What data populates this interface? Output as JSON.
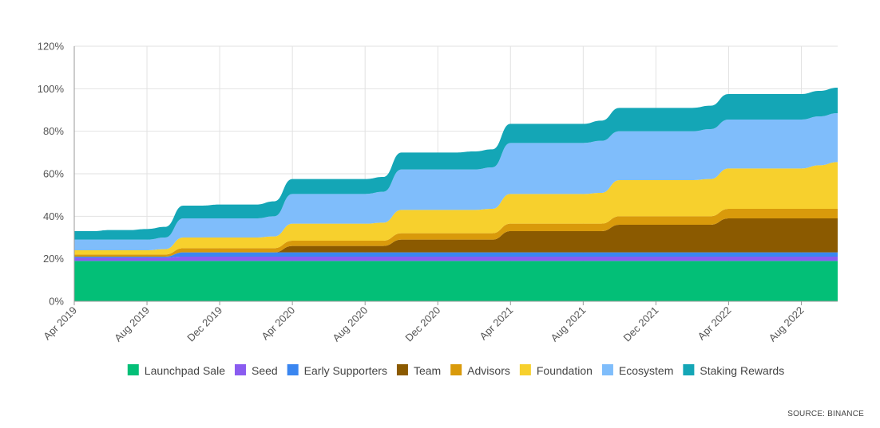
{
  "chart_data": {
    "type": "area",
    "stacked": true,
    "x": [
      "2019-04",
      "2019-05",
      "2019-06",
      "2019-07",
      "2019-08",
      "2019-09",
      "2019-10",
      "2019-11",
      "2019-12",
      "2020-01",
      "2020-02",
      "2020-03",
      "2020-04",
      "2020-05",
      "2020-06",
      "2020-07",
      "2020-08",
      "2020-09",
      "2020-10",
      "2020-11",
      "2020-12",
      "2021-01",
      "2021-02",
      "2021-03",
      "2021-04",
      "2021-05",
      "2021-06",
      "2021-07",
      "2021-08",
      "2021-09",
      "2021-10",
      "2021-11",
      "2021-12",
      "2022-01",
      "2022-02",
      "2022-03",
      "2022-04",
      "2022-05",
      "2022-06",
      "2022-07",
      "2022-08",
      "2022-09",
      "2022-10"
    ],
    "x_tick_labels": [
      "Apr 2019",
      "Aug 2019",
      "Dec 2019",
      "Apr 2020",
      "Aug 2020",
      "Dec 2020",
      "Apr 2021",
      "Aug 2021",
      "Dec 2021",
      "Apr 2022",
      "Aug 2022"
    ],
    "ylim": [
      0,
      120
    ],
    "y_ticks": [
      "0%",
      "20%",
      "40%",
      "60%",
      "80%",
      "100%",
      "120%"
    ],
    "legend_position": "bottom",
    "grid": true,
    "series": [
      {
        "name": "Launchpad Sale",
        "color": "#03bf77",
        "values": [
          19,
          19,
          19,
          19,
          19,
          19,
          19,
          19,
          19,
          19,
          19,
          19,
          19,
          19,
          19,
          19,
          19,
          19,
          19,
          19,
          19,
          19,
          19,
          19,
          19,
          19,
          19,
          19,
          19,
          19,
          19,
          19,
          19,
          19,
          19,
          19,
          19,
          19,
          19,
          19,
          19,
          19,
          19
        ]
      },
      {
        "name": "Seed",
        "color": "#8a5cf0",
        "values": [
          1.5,
          1.5,
          1.5,
          1.5,
          1.5,
          1.5,
          2,
          2,
          2,
          2,
          2,
          2,
          2,
          2,
          2,
          2,
          2,
          2,
          2,
          2,
          2,
          2,
          2,
          2,
          2,
          2,
          2,
          2,
          2,
          2,
          2,
          2,
          2,
          2,
          2,
          2,
          2,
          2,
          2,
          2,
          2,
          2,
          2
        ]
      },
      {
        "name": "Early Supporters",
        "color": "#3a86f0",
        "values": [
          0.5,
          0.5,
          0.5,
          0.5,
          0.5,
          0.5,
          2,
          2,
          2,
          2,
          2,
          2,
          2,
          2,
          2,
          2,
          2,
          2,
          2,
          2,
          2,
          2,
          2,
          2,
          2,
          2,
          2,
          2,
          2,
          2,
          2,
          2,
          2,
          2,
          2,
          2,
          2,
          2,
          2,
          2,
          2,
          2,
          2
        ]
      },
      {
        "name": "Team",
        "color": "#8b5a00",
        "values": [
          0,
          0,
          0,
          0,
          0,
          0,
          0,
          0,
          0,
          0,
          0,
          0,
          3,
          3,
          3,
          3,
          3,
          3,
          6,
          6,
          6,
          6,
          6,
          6,
          10,
          10,
          10,
          10,
          10,
          10,
          13,
          13,
          13,
          13,
          13,
          13,
          16,
          16,
          16,
          16,
          16,
          16,
          16
        ]
      },
      {
        "name": "Advisors",
        "color": "#d99a0b",
        "values": [
          1,
          1,
          1,
          1,
          1,
          1,
          2,
          2,
          2,
          2,
          2,
          2,
          2.5,
          2.5,
          2.5,
          2.5,
          2.5,
          2.5,
          3,
          3,
          3,
          3,
          3,
          3,
          3.5,
          3.5,
          3.5,
          3.5,
          3.5,
          3.5,
          4,
          4,
          4,
          4,
          4,
          4,
          4.5,
          4.5,
          4.5,
          4.5,
          4.5,
          4.5,
          4.5
        ]
      },
      {
        "name": "Foundation",
        "color": "#f7d02d",
        "values": [
          2,
          2,
          2,
          2,
          2,
          2.5,
          5,
          5,
          5,
          5,
          5,
          5.5,
          8,
          8,
          8,
          8,
          8,
          8.5,
          11,
          11,
          11,
          11,
          11,
          11.5,
          14,
          14,
          14,
          14,
          14,
          14.5,
          17,
          17,
          17,
          17,
          17,
          17.5,
          19,
          19,
          19,
          19,
          19,
          20.5,
          22
        ]
      },
      {
        "name": "Ecosystem",
        "color": "#7fbdfb",
        "values": [
          5,
          5,
          5,
          5,
          5,
          5.5,
          9,
          9,
          9,
          9,
          9,
          9.5,
          14,
          14,
          14,
          14,
          14,
          14.5,
          19,
          19,
          19,
          19,
          19,
          19.5,
          24,
          24,
          24,
          24,
          24,
          24.5,
          23,
          23,
          23,
          23,
          23,
          23.5,
          23,
          23,
          23,
          23,
          23,
          23,
          23
        ]
      },
      {
        "name": "Staking Rewards",
        "color": "#14a6b6",
        "values": [
          4,
          4,
          4.5,
          4.5,
          5,
          5,
          6,
          6,
          6.5,
          6.5,
          6.5,
          7,
          7,
          7,
          7,
          7,
          7,
          7,
          8,
          8,
          8,
          8,
          8.5,
          8.5,
          9,
          9,
          9,
          9,
          9,
          9.5,
          11,
          11,
          11,
          11,
          11,
          11,
          12,
          12,
          12,
          12,
          12,
          12,
          12
        ]
      }
    ]
  },
  "source_text": "SOURCE: BINANCE"
}
